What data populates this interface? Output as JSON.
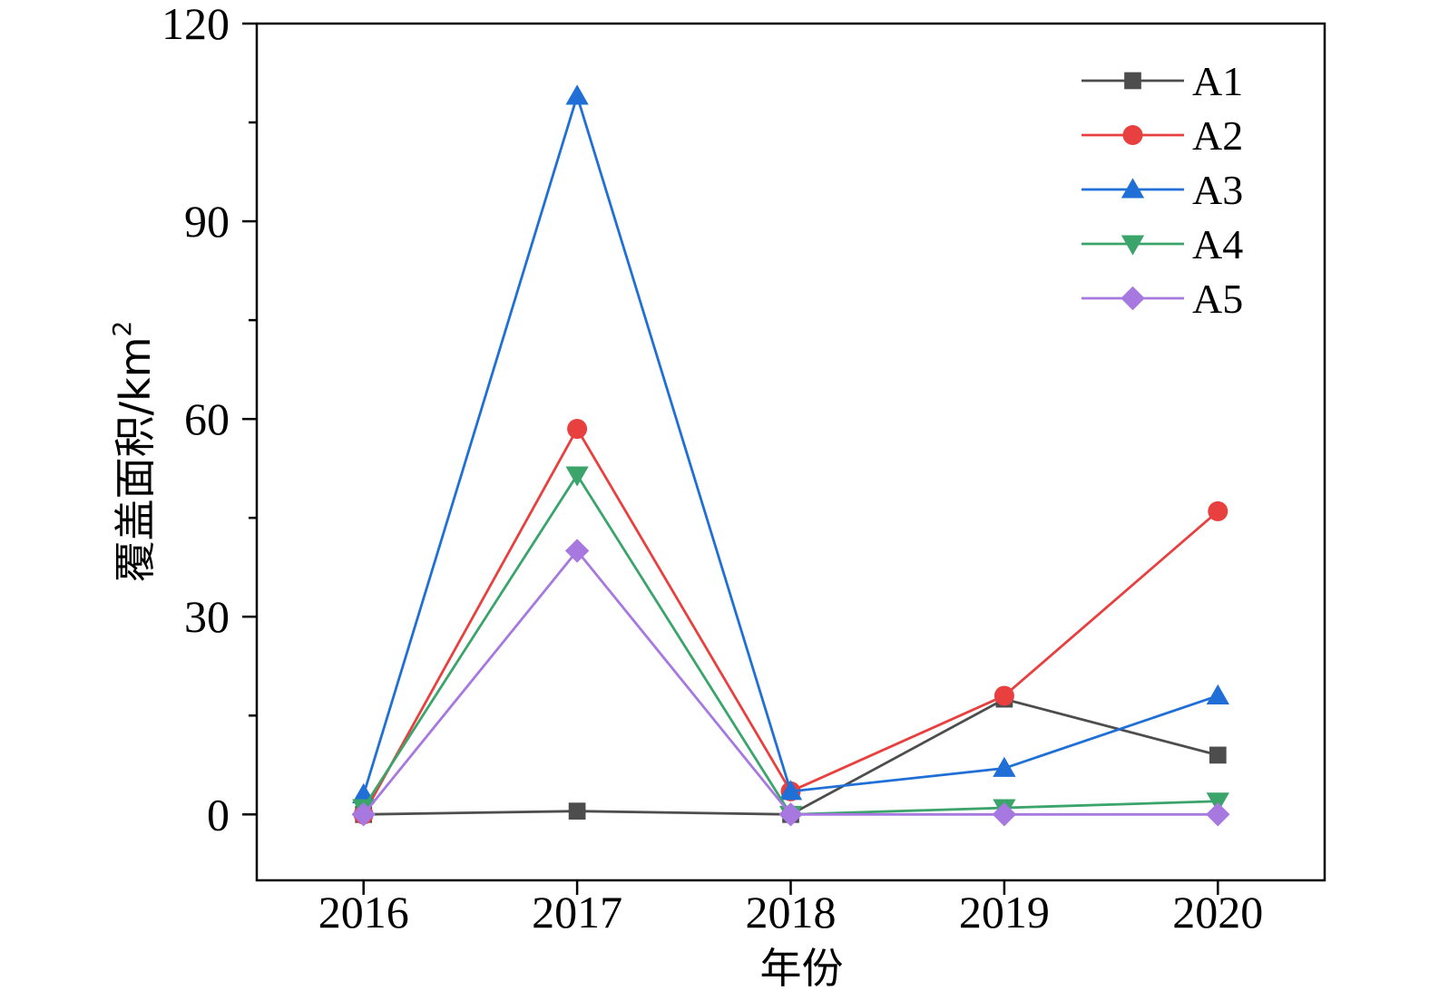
{
  "chart_data": {
    "type": "line",
    "title": "",
    "xlabel": "年份",
    "ylabel": "覆盖面积/km",
    "ylabel_superscript": "2",
    "x": [
      2016,
      2017,
      2018,
      2019,
      2020
    ],
    "xlim": [
      2015.5,
      2020.5
    ],
    "ylim": [
      -10,
      120
    ],
    "yticks": [
      0,
      30,
      60,
      90,
      120
    ],
    "yminor_ticks": [
      15,
      45,
      75,
      105
    ],
    "grid": false,
    "legend_position": "top-right",
    "series": [
      {
        "name": "A1",
        "color": "#4d4d4d",
        "marker": "square",
        "values": [
          0.0,
          0.5,
          0.0,
          17.5,
          9.0
        ]
      },
      {
        "name": "A2",
        "color": "#e8403f",
        "marker": "circle",
        "values": [
          0.0,
          58.5,
          3.5,
          18.0,
          46.0
        ]
      },
      {
        "name": "A3",
        "color": "#1f6fd6",
        "marker": "triangle-up",
        "values": [
          3.0,
          109.0,
          3.5,
          7.0,
          18.0
        ]
      },
      {
        "name": "A4",
        "color": "#3aa46a",
        "marker": "triangle-down",
        "values": [
          1.0,
          51.5,
          0.0,
          1.0,
          2.0
        ]
      },
      {
        "name": "A5",
        "color": "#a778e0",
        "marker": "diamond",
        "values": [
          0.0,
          40.0,
          0.0,
          0.0,
          0.0
        ]
      }
    ]
  }
}
